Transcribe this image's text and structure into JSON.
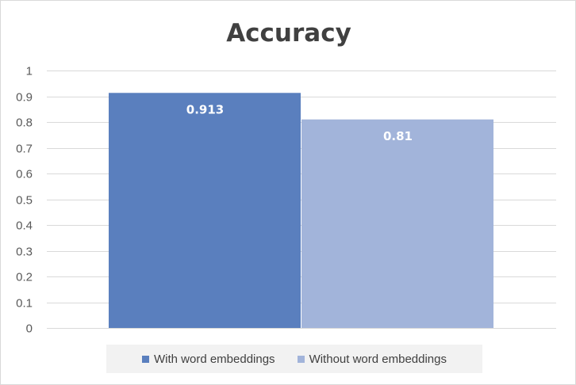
{
  "chart_data": {
    "type": "bar",
    "title": "Accuracy",
    "categories": [
      ""
    ],
    "series": [
      {
        "name": "With word embeddings",
        "values": [
          0.913
        ],
        "label": "0.913",
        "color": "#5a7fbe"
      },
      {
        "name": "Without word embeddings",
        "values": [
          0.81
        ],
        "label": "0.81",
        "color": "#a2b4da"
      }
    ],
    "ylim": [
      0,
      1
    ],
    "yticks": [
      "0",
      "0.1",
      "0.2",
      "0.3",
      "0.4",
      "0.5",
      "0.6",
      "0.7",
      "0.8",
      "0.9",
      "1"
    ],
    "grid": true,
    "legend": "bottom"
  }
}
